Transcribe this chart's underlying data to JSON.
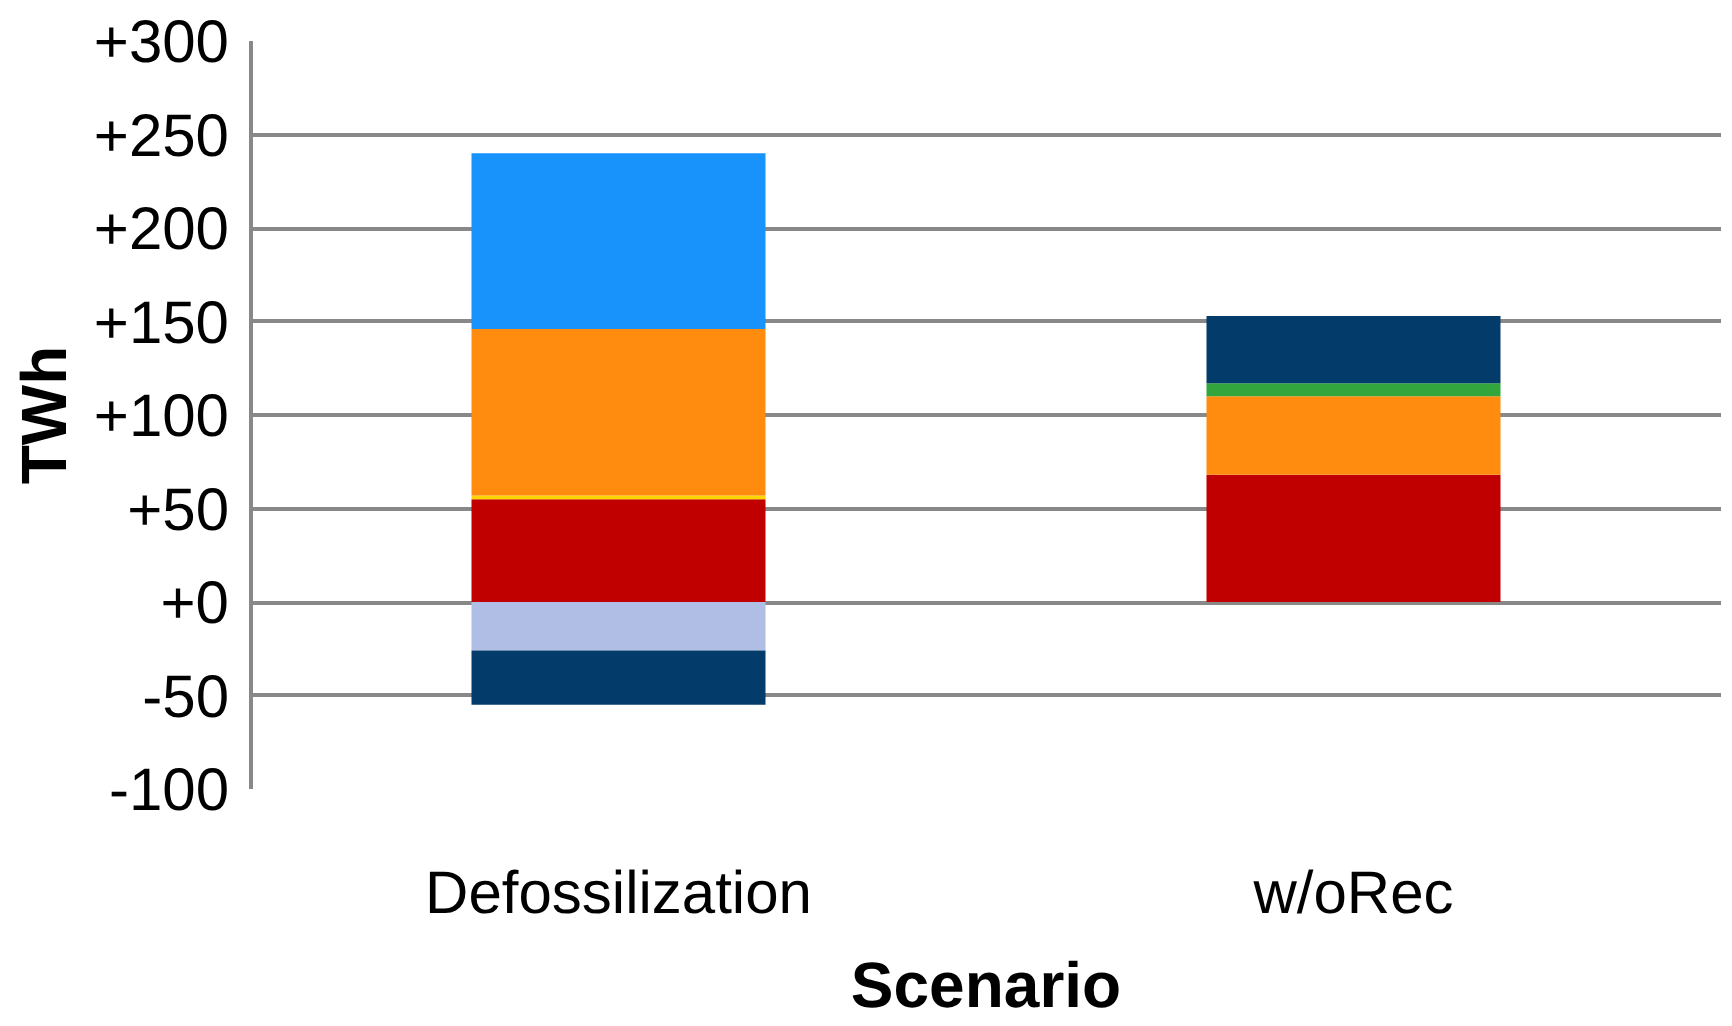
{
  "chart_data": {
    "type": "bar",
    "stacked": true,
    "xlabel": "Scenario",
    "ylabel": "TWh",
    "categories": [
      "Defossilization",
      "w/oRec"
    ],
    "series": [
      {
        "color": "#c00000",
        "values": [
          55,
          68
        ]
      },
      {
        "color": "#ffd700",
        "values": [
          2,
          null
        ]
      },
      {
        "color": "#ff8c0f",
        "values": [
          89,
          42
        ]
      },
      {
        "color": "#32a53c",
        "values": [
          null,
          7
        ]
      },
      {
        "color": "#1893fb",
        "values": [
          94,
          null
        ]
      },
      {
        "color": "#b0bee6",
        "values": [
          -26,
          null
        ]
      },
      {
        "color": "#033c6b",
        "values": [
          -29,
          36
        ]
      }
    ],
    "ylim": [
      -100,
      300
    ],
    "yticks": [
      {
        "value": -100,
        "label": "-100"
      },
      {
        "value": -50,
        "label": "-50"
      },
      {
        "value": 0,
        "label": "+0"
      },
      {
        "value": 50,
        "label": "+50"
      },
      {
        "value": 100,
        "label": "+100"
      },
      {
        "value": 150,
        "label": "+150"
      },
      {
        "value": 200,
        "label": "+200"
      },
      {
        "value": 250,
        "label": "+250"
      },
      {
        "value": 300,
        "label": "+300"
      }
    ],
    "grid": "y"
  }
}
